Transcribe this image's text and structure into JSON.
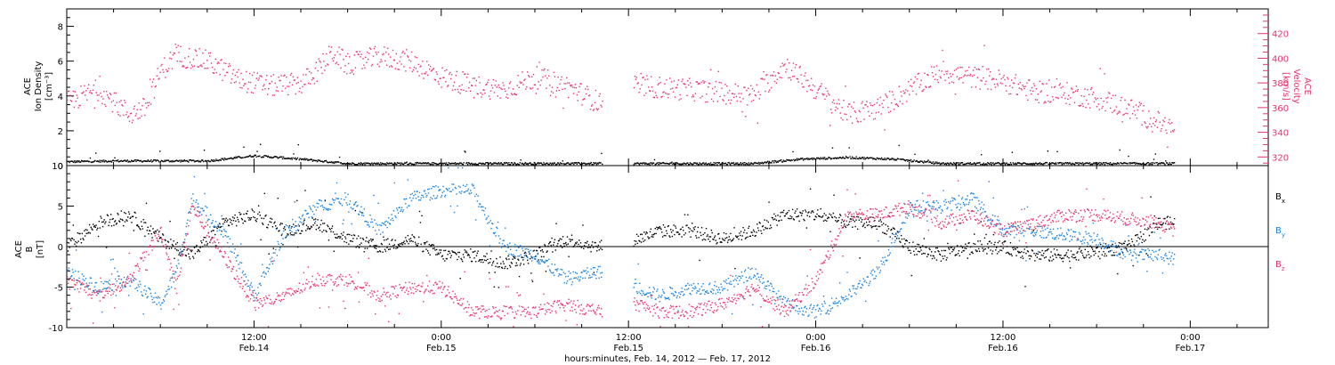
{
  "colors": {
    "black": "#000000",
    "pink": "#e8336a",
    "blue": "#1a82e0"
  },
  "chart_data": [
    {
      "type": "scatter",
      "panel": "top",
      "ylabel_left": [
        "ACE",
        "Ion Density",
        "[cm⁻³]"
      ],
      "ylabel_right": [
        "ACE",
        "Velocity",
        "[km/s]"
      ],
      "ylim_left": [
        0,
        9
      ],
      "ylim_right": [
        313,
        440
      ],
      "yticks_left": [
        "0",
        "2",
        "4",
        "6",
        "8"
      ],
      "yticks_right": [
        "320",
        "340",
        "360",
        "380",
        "400",
        "420"
      ],
      "data_gap_hours": [
        34.3,
        36.3
      ],
      "series": [
        {
          "axis": "left",
          "color": "black",
          "x": [
            0,
            3,
            6,
            9,
            12,
            15,
            18,
            21,
            24,
            27,
            30,
            33,
            34,
            36.5,
            40,
            42,
            44,
            47,
            50,
            53,
            56,
            59,
            62,
            65,
            68,
            71
          ],
          "y": [
            0.25,
            0.3,
            0.3,
            0.3,
            0.6,
            0.4,
            0.15,
            0.15,
            0.15,
            0.15,
            0.15,
            0.15,
            0.15,
            0.15,
            0.15,
            0.15,
            0.15,
            0.4,
            0.5,
            0.4,
            0.15,
            0.15,
            0.15,
            0.15,
            0.15,
            0.15
          ]
        },
        {
          "axis": "right",
          "color": "pink",
          "x": [
            0,
            2,
            4,
            5,
            6,
            7,
            9,
            11,
            13,
            15,
            16,
            17,
            18,
            20,
            22,
            24,
            26,
            28,
            30,
            32,
            34,
            36.5,
            40,
            44,
            46,
            48,
            50,
            52,
            54,
            56,
            58,
            60,
            62,
            64,
            66,
            68,
            70,
            71
          ],
          "y": [
            365,
            375,
            355,
            360,
            390,
            403,
            398,
            383,
            378,
            380,
            390,
            405,
            395,
            402,
            398,
            385,
            378,
            375,
            385,
            378,
            365,
            378,
            375,
            370,
            395,
            375,
            355,
            360,
            375,
            390,
            385,
            382,
            373,
            372,
            368,
            360,
            348,
            342
          ]
        }
      ]
    },
    {
      "type": "scatter",
      "panel": "bottom",
      "ylabel": [
        "ACE",
        "B",
        "[nT]"
      ],
      "ylim": [
        -10,
        10
      ],
      "yticks": [
        "-10",
        "-5",
        "0",
        "5",
        "10"
      ],
      "xticks": [
        {
          "hour": 12,
          "time": "12:00",
          "date": "Feb.14"
        },
        {
          "hour": 24,
          "time": "0:00",
          "date": "Feb.15"
        },
        {
          "hour": 36,
          "time": "12:00",
          "date": "Feb.15"
        },
        {
          "hour": 48,
          "time": "0:00",
          "date": "Feb.16"
        },
        {
          "hour": 60,
          "time": "12:00",
          "date": "Feb.16"
        },
        {
          "hour": 72,
          "time": "0:00",
          "date": "Feb.17"
        }
      ],
      "xlim_hours": [
        0,
        77
      ],
      "xlabel": "hours:minutes, Feb. 14, 2012 — Feb. 17, 2012",
      "legend": [
        "B",
        "B",
        "B"
      ],
      "legend_sub": [
        "x",
        "y",
        "z"
      ],
      "series": [
        {
          "name": "Bx",
          "color": "black",
          "x": [
            0,
            2,
            4,
            6,
            8,
            10,
            12,
            14,
            16,
            18,
            20,
            22,
            24,
            26,
            28,
            30,
            32,
            34,
            36.5,
            38,
            40,
            42,
            44,
            46,
            48,
            50,
            52,
            54,
            56,
            58,
            60,
            62,
            64,
            66,
            68,
            70,
            71
          ],
          "y": [
            0,
            3,
            4,
            1,
            -1,
            3,
            4,
            2,
            3,
            1,
            0,
            1,
            -1,
            -1,
            -2,
            -1,
            1,
            0,
            1,
            2,
            2,
            1,
            2,
            4,
            4,
            3,
            3,
            0,
            -1,
            0,
            0,
            -1,
            -1,
            -0.5,
            0,
            3,
            3
          ]
        },
        {
          "name": "By",
          "color": "blue",
          "x": [
            0,
            2,
            4,
            6,
            7,
            8,
            10,
            12,
            14,
            16,
            18,
            20,
            22,
            24,
            26,
            28,
            30,
            32,
            34,
            36.5,
            38,
            40,
            42,
            44,
            46,
            48,
            50,
            52,
            54,
            56,
            58,
            60,
            62,
            64,
            66,
            68,
            70,
            71
          ],
          "y": [
            -3,
            -5,
            -4,
            -7,
            -3,
            6,
            2,
            -6,
            2,
            5,
            6,
            2,
            6,
            7,
            7,
            0,
            -1,
            -4,
            -3,
            -5,
            -6,
            -5,
            -5,
            -3,
            -7,
            -8,
            -6,
            -3,
            5,
            5,
            6,
            2,
            2,
            1.5,
            1,
            -1,
            -1,
            -1.5
          ]
        },
        {
          "name": "Bz",
          "color": "pink",
          "x": [
            0,
            2,
            4,
            6,
            7,
            8,
            10,
            12,
            14,
            16,
            18,
            20,
            22,
            24,
            26,
            28,
            30,
            32,
            34,
            36.5,
            38,
            40,
            42,
            44,
            46,
            48,
            50,
            52,
            54,
            56,
            58,
            60,
            62,
            64,
            66,
            68,
            70,
            71
          ],
          "y": [
            -4,
            -6,
            -4,
            2,
            -5,
            5,
            -1,
            -7,
            -6,
            -4,
            -4,
            -6,
            -5,
            -5,
            -8,
            -8,
            -8,
            -7,
            -8,
            -7,
            -8,
            -8,
            -7,
            -5,
            -8,
            -4,
            4,
            4,
            5,
            3,
            4,
            2,
            3,
            4,
            4,
            3.5,
            3,
            2
          ]
        }
      ]
    }
  ]
}
